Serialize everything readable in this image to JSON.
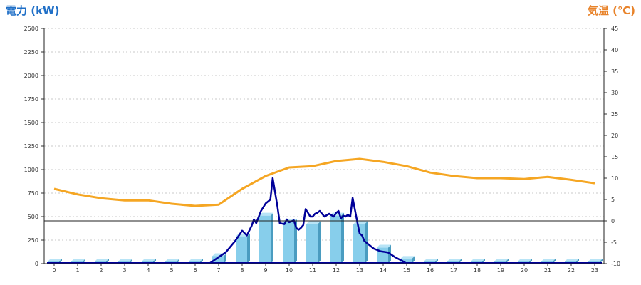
{
  "chart_data": {
    "type": "bar+line",
    "left_axis": {
      "title": "電力 (kW)",
      "min": 0,
      "max": 2500,
      "ticks": [
        0,
        250,
        500,
        750,
        1000,
        1250,
        1500,
        1750,
        2000,
        2250,
        2500
      ]
    },
    "right_axis": {
      "title": "気温 (℃)",
      "min": -10,
      "max": 45,
      "ticks": [
        -10,
        -5,
        0,
        5,
        10,
        15,
        20,
        25,
        30,
        35,
        40,
        45
      ]
    },
    "x_ticks": [
      "0",
      "1",
      "2",
      "3",
      "4",
      "5",
      "6",
      "7",
      "8",
      "9",
      "10",
      "11",
      "12",
      "13",
      "14",
      "15",
      "16",
      "17",
      "18",
      "19",
      "20",
      "21",
      "22",
      "23"
    ],
    "grid": true,
    "hourly_power_bars": [
      0,
      0,
      0,
      0,
      0,
      0,
      0,
      80,
      290,
      510,
      440,
      420,
      510,
      420,
      170,
      50,
      0,
      0,
      0,
      0,
      0,
      0,
      0,
      0
    ],
    "power_line": {
      "x": [
        6.6,
        7.0,
        7.3,
        7.7,
        8.0,
        8.2,
        8.4,
        8.5,
        8.6,
        8.8,
        9.0,
        9.2,
        9.3,
        9.5,
        9.6,
        9.8,
        9.9,
        10.0,
        10.2,
        10.3,
        10.4,
        10.5,
        10.6,
        10.7,
        10.9,
        11.0,
        11.1,
        11.2,
        11.3,
        11.5,
        11.7,
        11.9,
        12.0,
        12.1,
        12.2,
        12.3,
        12.4,
        12.5,
        12.6,
        12.7,
        12.9,
        13.0,
        13.1,
        13.2,
        13.4,
        13.6,
        13.9,
        14.2,
        14.5,
        14.8,
        15.0
      ],
      "y": [
        0,
        70,
        120,
        240,
        350,
        300,
        400,
        470,
        430,
        560,
        640,
        680,
        910,
        610,
        430,
        420,
        470,
        440,
        460,
        380,
        360,
        380,
        410,
        580,
        500,
        500,
        530,
        540,
        560,
        500,
        530,
        500,
        540,
        560,
        480,
        510,
        500,
        520,
        500,
        700,
        440,
        320,
        300,
        240,
        200,
        160,
        130,
        120,
        70,
        30,
        0
      ]
    },
    "temperature_line": {
      "x": [
        0,
        1,
        2,
        3,
        4,
        5,
        6,
        7,
        8,
        9,
        10,
        11,
        12,
        13,
        14,
        15,
        16,
        17,
        18,
        19,
        20,
        21,
        22,
        23
      ],
      "y": [
        7.5,
        6.2,
        5.3,
        4.8,
        4.8,
        4.0,
        3.5,
        3.8,
        7.5,
        10.5,
        12.5,
        12.8,
        14.0,
        14.5,
        13.8,
        12.8,
        11.3,
        10.5,
        10.0,
        10.0,
        9.8,
        10.3,
        9.6,
        8.8
      ]
    },
    "colors": {
      "bar_face": "#87CEEB",
      "bar_side": "#4A9CC0",
      "bar_top": "#B8E4F6",
      "power_line": "#000099",
      "temperature_line": "#F5A623",
      "left_title": "#1F6FC7",
      "right_title": "#E8832A",
      "grid": "#C8C8C8"
    }
  }
}
